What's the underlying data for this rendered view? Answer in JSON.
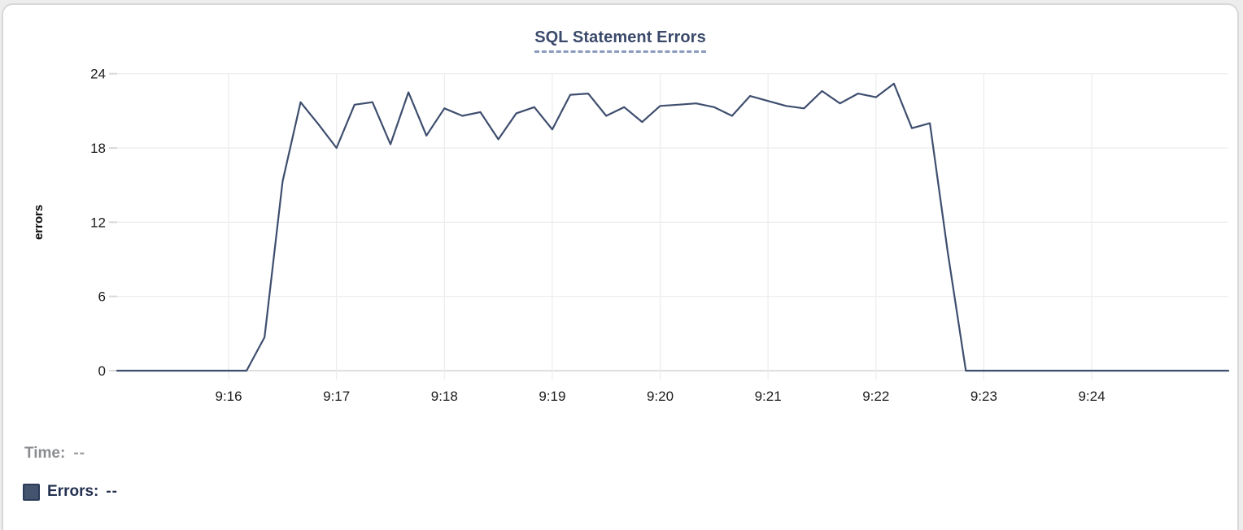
{
  "card": {
    "title": "SQL Statement Errors"
  },
  "legend": {
    "time_label": "Time:",
    "time_value": "--",
    "errors_label": "Errors:",
    "errors_value": "--"
  },
  "colors": {
    "line": "#3e4e6e",
    "title": "#3b4a6b",
    "title_underline": "#8c9bbd",
    "grid": "#ececec",
    "baseline": "#dfdfdf",
    "tickmark": "#d9d9d9",
    "axis_text": "#1c1c1c",
    "time_text": "#8b8d90",
    "errors_text": "#233050",
    "swatch_fill": "#44536e",
    "swatch_border": "#2b3a58",
    "card_border": "#d8d8d8",
    "page_bg": "#ededed"
  },
  "chart_data": {
    "type": "line",
    "title": "SQL Statement Errors",
    "ylabel": "errors",
    "series_name": "Errors",
    "x_unit": "seconds after 9:15:00",
    "xlim": [
      -2,
      616
    ],
    "ylim": [
      0,
      24
    ],
    "y_ticks": [
      0,
      6,
      12,
      18,
      24
    ],
    "x_ticks": [
      {
        "t": 60,
        "label": "9:16"
      },
      {
        "t": 120,
        "label": "9:17"
      },
      {
        "t": 180,
        "label": "9:18"
      },
      {
        "t": 240,
        "label": "9:19"
      },
      {
        "t": 300,
        "label": "9:20"
      },
      {
        "t": 360,
        "label": "9:21"
      },
      {
        "t": 420,
        "label": "9:22"
      },
      {
        "t": 480,
        "label": "9:23"
      },
      {
        "t": 540,
        "label": "9:24"
      }
    ],
    "grid": true,
    "legend_position": "bottom-left",
    "points": [
      [
        -2,
        0
      ],
      [
        0,
        0
      ],
      [
        10,
        0
      ],
      [
        20,
        0
      ],
      [
        30,
        0
      ],
      [
        40,
        0
      ],
      [
        50,
        0
      ],
      [
        60,
        0
      ],
      [
        70,
        0
      ],
      [
        80,
        2.7
      ],
      [
        90,
        15.3
      ],
      [
        100,
        21.7
      ],
      [
        110,
        19.9
      ],
      [
        120,
        18.0
      ],
      [
        130,
        21.5
      ],
      [
        140,
        21.7
      ],
      [
        150,
        18.3
      ],
      [
        160,
        22.5
      ],
      [
        170,
        19.0
      ],
      [
        180,
        21.2
      ],
      [
        190,
        20.6
      ],
      [
        200,
        20.9
      ],
      [
        210,
        18.7
      ],
      [
        220,
        20.8
      ],
      [
        230,
        21.3
      ],
      [
        240,
        19.5
      ],
      [
        250,
        22.3
      ],
      [
        260,
        22.4
      ],
      [
        270,
        20.6
      ],
      [
        280,
        21.3
      ],
      [
        290,
        20.1
      ],
      [
        300,
        21.4
      ],
      [
        310,
        21.5
      ],
      [
        320,
        21.6
      ],
      [
        330,
        21.3
      ],
      [
        340,
        20.6
      ],
      [
        350,
        22.2
      ],
      [
        360,
        21.8
      ],
      [
        370,
        21.4
      ],
      [
        380,
        21.2
      ],
      [
        390,
        22.6
      ],
      [
        400,
        21.6
      ],
      [
        410,
        22.4
      ],
      [
        420,
        22.1
      ],
      [
        430,
        23.2
      ],
      [
        440,
        19.6
      ],
      [
        450,
        20.0
      ],
      [
        460,
        9.5
      ],
      [
        470,
        0
      ],
      [
        480,
        0
      ],
      [
        490,
        0
      ],
      [
        500,
        0
      ],
      [
        510,
        0
      ],
      [
        520,
        0
      ],
      [
        530,
        0
      ],
      [
        540,
        0
      ],
      [
        550,
        0
      ],
      [
        560,
        0
      ],
      [
        570,
        0
      ],
      [
        580,
        0
      ],
      [
        590,
        0
      ],
      [
        600,
        0
      ],
      [
        610,
        0
      ],
      [
        616,
        0
      ]
    ]
  }
}
